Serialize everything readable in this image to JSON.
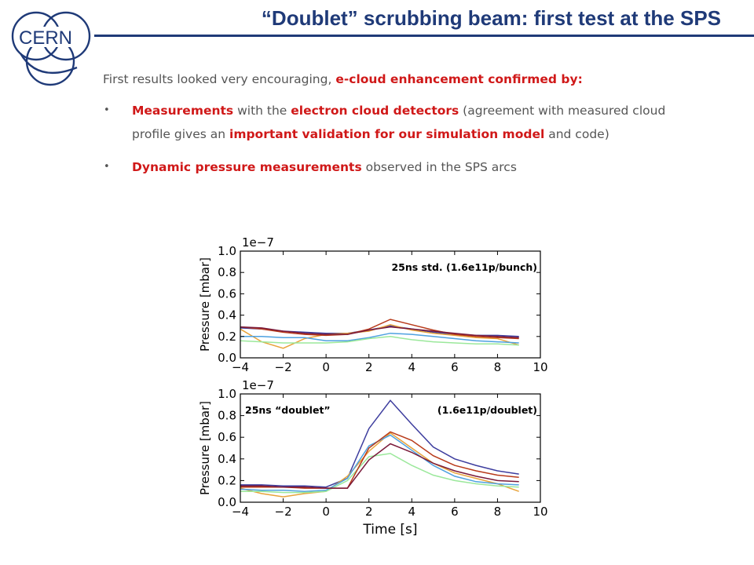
{
  "slide": {
    "title": "“Doublet” scrubbing beam: first test at the SPS",
    "logo_text": "CERN",
    "intro": {
      "prefix": "First results looked very encouraging, ",
      "highlight": "e-cloud enhancement confirmed by:"
    },
    "bullets": [
      {
        "segments": [
          {
            "text": "Measurements",
            "highlight": true
          },
          {
            "text": " with the ",
            "highlight": false
          },
          {
            "text": "electron cloud detectors",
            "highlight": true
          },
          {
            "text": " (agreement with measured cloud profile gives an ",
            "highlight": false
          },
          {
            "text": "important validation for our simulation model",
            "highlight": true
          },
          {
            "text": " and code)",
            "highlight": false
          }
        ]
      },
      {
        "segments": [
          {
            "text": "Dynamic pressure measurements",
            "highlight": true
          },
          {
            "text": " observed in the SPS arcs",
            "highlight": false
          }
        ]
      }
    ],
    "colors": {
      "title": "#1f3a78",
      "highlight": "#d01818",
      "body": "#555555"
    }
  },
  "chart_data": [
    {
      "type": "line",
      "annotation": "25ns std. (1.6e11p/bunch)",
      "ylabel": "Pressure [mbar]",
      "xlabel": "",
      "offset_text": "1e−7",
      "xlim": [
        -4,
        10
      ],
      "ylim": [
        0,
        1.0
      ],
      "xticks": [
        -4,
        -2,
        0,
        2,
        4,
        6,
        8,
        10
      ],
      "yticks": [
        0.0,
        0.2,
        0.4,
        0.6,
        0.8,
        1.0
      ],
      "x": [
        -4,
        -3,
        -2,
        -1,
        0,
        1,
        2,
        3,
        4,
        5,
        6,
        7,
        8,
        9
      ],
      "series": [
        {
          "color": "#3d3d9e",
          "values": [
            0.28,
            0.27,
            0.25,
            0.24,
            0.23,
            0.23,
            0.26,
            0.3,
            0.27,
            0.24,
            0.22,
            0.21,
            0.21,
            0.2
          ]
        },
        {
          "color": "#e8a33a",
          "values": [
            0.27,
            0.15,
            0.09,
            0.18,
            0.22,
            0.23,
            0.25,
            0.31,
            0.26,
            0.23,
            0.21,
            0.19,
            0.18,
            0.12
          ]
        },
        {
          "color": "#4ea1e0",
          "values": [
            0.2,
            0.2,
            0.19,
            0.19,
            0.16,
            0.16,
            0.19,
            0.23,
            0.22,
            0.2,
            0.18,
            0.16,
            0.15,
            0.14
          ]
        },
        {
          "color": "#9be89b",
          "values": [
            0.16,
            0.15,
            0.14,
            0.14,
            0.14,
            0.15,
            0.18,
            0.2,
            0.17,
            0.15,
            0.14,
            0.13,
            0.13,
            0.12
          ]
        },
        {
          "color": "#b83a1a",
          "values": [
            0.29,
            0.27,
            0.24,
            0.22,
            0.21,
            0.22,
            0.27,
            0.36,
            0.31,
            0.26,
            0.22,
            0.2,
            0.19,
            0.18
          ]
        },
        {
          "color": "#7a1a3a",
          "values": [
            0.29,
            0.28,
            0.25,
            0.23,
            0.22,
            0.22,
            0.26,
            0.29,
            0.27,
            0.25,
            0.23,
            0.21,
            0.2,
            0.19
          ]
        }
      ]
    },
    {
      "type": "line",
      "annotation": "(1.6e11p/doublet)",
      "annotation_left": "25ns “doublet”",
      "ylabel": "Pressure [mbar]",
      "xlabel": "Time [s]",
      "offset_text": "1e−7",
      "xlim": [
        -4,
        10
      ],
      "ylim": [
        0,
        1.0
      ],
      "xticks": [
        -4,
        -2,
        0,
        2,
        4,
        6,
        8,
        10
      ],
      "yticks": [
        0.0,
        0.2,
        0.4,
        0.6,
        0.8,
        1.0
      ],
      "x": [
        -4,
        -3,
        -2,
        -1,
        0,
        1,
        2,
        3,
        4,
        5,
        6,
        7,
        8,
        9
      ],
      "series": [
        {
          "color": "#3d3d9e",
          "values": [
            0.16,
            0.16,
            0.15,
            0.15,
            0.14,
            0.22,
            0.68,
            0.94,
            0.72,
            0.51,
            0.4,
            0.34,
            0.29,
            0.26
          ]
        },
        {
          "color": "#e8a33a",
          "values": [
            0.13,
            0.08,
            0.05,
            0.08,
            0.1,
            0.24,
            0.47,
            0.64,
            0.5,
            0.36,
            0.27,
            0.22,
            0.17,
            0.1
          ]
        },
        {
          "color": "#4ea1e0",
          "values": [
            0.12,
            0.11,
            0.11,
            0.1,
            0.11,
            0.22,
            0.52,
            0.62,
            0.48,
            0.34,
            0.24,
            0.19,
            0.17,
            0.16
          ]
        },
        {
          "color": "#9be89b",
          "values": [
            0.1,
            0.1,
            0.09,
            0.09,
            0.1,
            0.2,
            0.42,
            0.45,
            0.34,
            0.25,
            0.2,
            0.17,
            0.15,
            0.14
          ]
        },
        {
          "color": "#b83a1a",
          "values": [
            0.14,
            0.14,
            0.14,
            0.13,
            0.13,
            0.13,
            0.5,
            0.65,
            0.57,
            0.43,
            0.34,
            0.29,
            0.25,
            0.23
          ]
        },
        {
          "color": "#7a1a3a",
          "values": [
            0.15,
            0.15,
            0.14,
            0.14,
            0.13,
            0.13,
            0.39,
            0.54,
            0.46,
            0.36,
            0.29,
            0.24,
            0.2,
            0.19
          ]
        }
      ]
    }
  ]
}
